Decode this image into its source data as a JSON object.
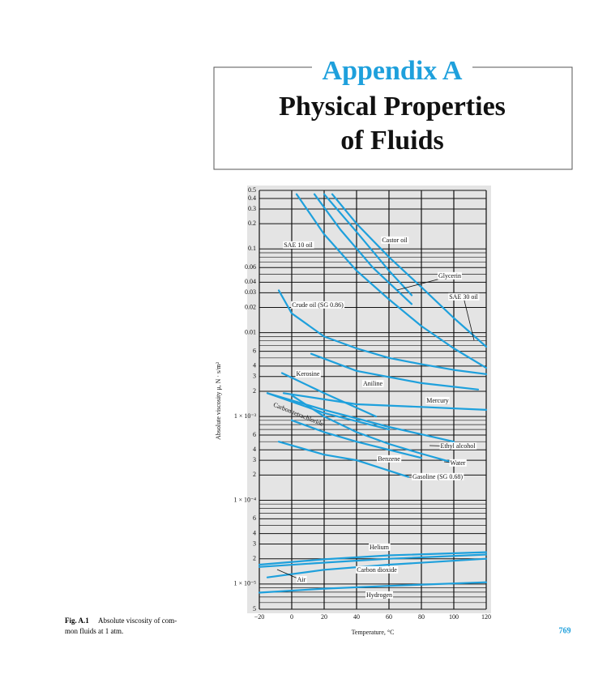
{
  "header": {
    "title": "Appendix A",
    "subtitle": [
      "Physical Properties",
      "of Fluids"
    ]
  },
  "chart_data": {
    "type": "line",
    "ylog": true,
    "grid": true,
    "xlabel": "Temperature, °C",
    "ylabel": "Absolute viscosity μ, N · s/m²",
    "xlim": [
      -20,
      120
    ],
    "xticks": [
      {
        "value": -20,
        "label": "−20"
      },
      0,
      20,
      40,
      60,
      80,
      100,
      120
    ],
    "ylim": [
      5e-06,
      0.5
    ],
    "yticks": [
      0.5,
      0.4,
      0.3,
      0.2,
      0.1,
      0.06,
      0.04,
      0.03,
      0.02,
      0.01,
      {
        "value": 0.006,
        "label": "6"
      },
      {
        "value": 0.004,
        "label": "4"
      },
      {
        "value": 0.003,
        "label": "3"
      },
      {
        "value": 0.002,
        "label": "2"
      },
      {
        "value": 0.001,
        "label": "1 × 10⁻³"
      },
      {
        "value": 0.0006,
        "label": "6"
      },
      {
        "value": 0.0004,
        "label": "4"
      },
      {
        "value": 0.0003,
        "label": "3"
      },
      {
        "value": 0.0002,
        "label": "2"
      },
      {
        "value": 0.0001,
        "label": "1 × 10⁻⁴"
      },
      {
        "value": 6e-05,
        "label": "6"
      },
      {
        "value": 4e-05,
        "label": "4"
      },
      {
        "value": 3e-05,
        "label": "3"
      },
      {
        "value": 2e-05,
        "label": "2"
      },
      {
        "value": 1e-05,
        "label": "1 × 10⁻⁵"
      },
      {
        "value": 5e-06,
        "label": "5"
      }
    ],
    "minor_yticks": [
      0.09,
      0.08,
      0.07,
      0.05,
      0.009,
      0.008,
      0.007,
      0.005,
      0.0009,
      0.0008,
      0.0007,
      0.0005,
      9e-05,
      8e-05,
      7e-05,
      5e-05,
      9e-06,
      8e-06,
      7e-06,
      6e-06
    ],
    "series": [
      {
        "name": "SAE 10 oil",
        "color": "#1ea0dc",
        "x": [
          3,
          20,
          40,
          60,
          80,
          100,
          120
        ],
        "values": [
          0.45,
          0.15,
          0.055,
          0.025,
          0.012,
          0.0065,
          0.0038
        ]
      },
      {
        "name": "Glycerin",
        "color": "#1ea0dc",
        "x": [
          14,
          30,
          50,
          74
        ],
        "values": [
          0.45,
          0.17,
          0.06,
          0.022
        ]
      },
      {
        "name": "SAE 30 oil",
        "color": "#1ea0dc",
        "x": [
          25,
          40,
          60,
          80,
          100,
          120
        ],
        "values": [
          0.45,
          0.2,
          0.08,
          0.035,
          0.015,
          0.0068
        ]
      },
      {
        "name": "Castor oil",
        "color": "#1ea0dc",
        "x": [
          20,
          40,
          60,
          74
        ],
        "values": [
          0.45,
          0.16,
          0.055,
          0.028
        ]
      },
      {
        "name": "Crude oil (SG 0.86)",
        "color": "#1ea0dc",
        "x": [
          -8,
          0,
          20,
          40,
          60,
          80,
          100,
          120
        ],
        "values": [
          0.032,
          0.017,
          0.009,
          0.0065,
          0.005,
          0.0042,
          0.0036,
          0.0032
        ]
      },
      {
        "name": "Kerosine",
        "color": "#1ea0dc",
        "x": [
          -6,
          20,
          52
        ],
        "values": [
          0.0033,
          0.0019,
          0.001
        ]
      },
      {
        "name": "Aniline",
        "color": "#1ea0dc",
        "x": [
          12,
          40,
          80,
          115
        ],
        "values": [
          0.0056,
          0.0035,
          0.0025,
          0.0021
        ]
      },
      {
        "name": "Mercury",
        "color": "#1ea0dc",
        "x": [
          -5,
          40,
          80,
          120
        ],
        "values": [
          0.0019,
          0.0014,
          0.0013,
          0.0012
        ]
      },
      {
        "name": "Carbon tetrachloride",
        "color": "#1ea0dc",
        "x": [
          -15,
          20,
          60
        ],
        "values": [
          0.0019,
          0.0011,
          0.0007
        ]
      },
      {
        "name": "Ethyl alcohol",
        "color": "#1ea0dc",
        "x": [
          -15,
          20,
          60,
          100
        ],
        "values": [
          0.0019,
          0.0012,
          0.00075,
          0.0005
        ]
      },
      {
        "name": "Water",
        "color": "#1ea0dc",
        "x": [
          0,
          20,
          40,
          60,
          80,
          100
        ],
        "values": [
          0.00179,
          0.001,
          0.00065,
          0.00047,
          0.00036,
          0.00028
        ]
      },
      {
        "name": "Benzene",
        "color": "#1ea0dc",
        "x": [
          0,
          20,
          40,
          80
        ],
        "values": [
          0.0009,
          0.00065,
          0.0005,
          0.00032
        ]
      },
      {
        "name": "Gasoline (SG 0.68)",
        "color": "#1ea0dc",
        "x": [
          -8,
          20,
          40,
          72
        ],
        "values": [
          0.0005,
          0.00035,
          0.0003,
          0.00019
        ]
      },
      {
        "name": "Helium",
        "color": "#1ea0dc",
        "x": [
          -20,
          20,
          60,
          120
        ],
        "values": [
          1.7e-05,
          1.97e-05,
          2.2e-05,
          2.4e-05
        ]
      },
      {
        "name": "Air",
        "color": "#1ea0dc",
        "x": [
          -20,
          20,
          60,
          120
        ],
        "values": [
          1.6e-05,
          1.8e-05,
          2e-05,
          2.25e-05
        ]
      },
      {
        "name": "Carbon dioxide",
        "color": "#1ea0dc",
        "x": [
          -15,
          20,
          60,
          120
        ],
        "values": [
          1.2e-05,
          1.48e-05,
          1.7e-05,
          2e-05
        ]
      },
      {
        "name": "Hydrogen",
        "color": "#1ea0dc",
        "x": [
          -20,
          20,
          60,
          120
        ],
        "values": [
          7.9e-06,
          8.8e-06,
          9.5e-06,
          1.05e-05
        ]
      }
    ]
  },
  "caption": {
    "label": "Fig. A.1",
    "lines": [
      "Absolute viscosity of com-",
      "mon fluids at 1 atm."
    ]
  },
  "page_number": "769"
}
